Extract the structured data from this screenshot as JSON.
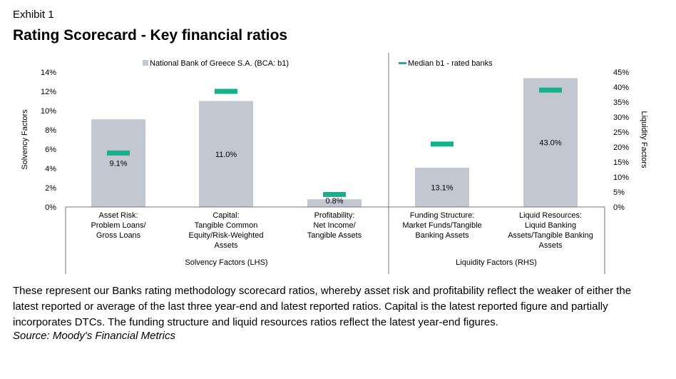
{
  "header": {
    "exhibit": "Exhibit 1",
    "title": "Rating Scorecard - Key financial ratios"
  },
  "footer": {
    "note": "These represent our Banks rating methodology scorecard ratios, whereby asset risk and profitability reflect the weaker of either the latest reported or average of the last three year-end and latest reported ratios. Capital is the latest reported figure and partially incorporates DTCs. The funding structure and liquid resources ratios reflect the latest year-end figures.",
    "source": "Source: Moody's Financial Metrics"
  },
  "chart_data": {
    "type": "bar",
    "series": [
      {
        "name": "National Bank of Greece S.A. (BCA: b1)",
        "kind": "bar",
        "color": "#c3c7d1",
        "values": [
          9.1,
          11.0,
          0.8,
          13.1,
          43.0
        ],
        "labels": [
          "9.1%",
          "11.0%",
          "0.8%",
          "13.1%",
          "43.0%"
        ]
      },
      {
        "name": "Median b1 - rated banks",
        "kind": "marker",
        "color": "#12b28c",
        "values": [
          5.6,
          12.0,
          1.3,
          21.0,
          39.0
        ]
      }
    ],
    "categories": [
      {
        "lines": [
          "Asset Risk:",
          "Problem Loans/",
          "Gross Loans"
        ],
        "axis": "left"
      },
      {
        "lines": [
          "Capital:",
          "Tangible Common",
          "Equity/Risk-Weighted",
          "Assets"
        ],
        "axis": "left"
      },
      {
        "lines": [
          "Profitability:",
          "Net Income/",
          "Tangible Assets"
        ],
        "axis": "left"
      },
      {
        "lines": [
          "Funding Structure:",
          "Market Funds/Tangible",
          "Banking Assets"
        ],
        "axis": "right"
      },
      {
        "lines": [
          "Liquid Resources:",
          "Liquid Banking",
          "Assets/Tangible Banking",
          "Assets"
        ],
        "axis": "right"
      }
    ],
    "groups": [
      {
        "label": "Solvency Factors (LHS)",
        "span": [
          0,
          2
        ]
      },
      {
        "label": "Liquidity Factors (RHS)",
        "span": [
          3,
          4
        ]
      }
    ],
    "y_left": {
      "label": "Solvency Factors",
      "min": 0,
      "max": 14,
      "ticks": [
        0,
        2,
        4,
        6,
        8,
        10,
        12,
        14
      ],
      "tick_labels": [
        "0%",
        "2%",
        "4%",
        "6%",
        "8%",
        "10%",
        "12%",
        "14%"
      ]
    },
    "y_right": {
      "label": "Liquidity Factors",
      "min": 0,
      "max": 45,
      "ticks": [
        0,
        5,
        10,
        15,
        20,
        25,
        30,
        35,
        40,
        45
      ],
      "tick_labels": [
        "0%",
        "5%",
        "10%",
        "15%",
        "20%",
        "25%",
        "30%",
        "35%",
        "40%",
        "45%"
      ]
    },
    "legend_position": "top",
    "grid": false
  }
}
